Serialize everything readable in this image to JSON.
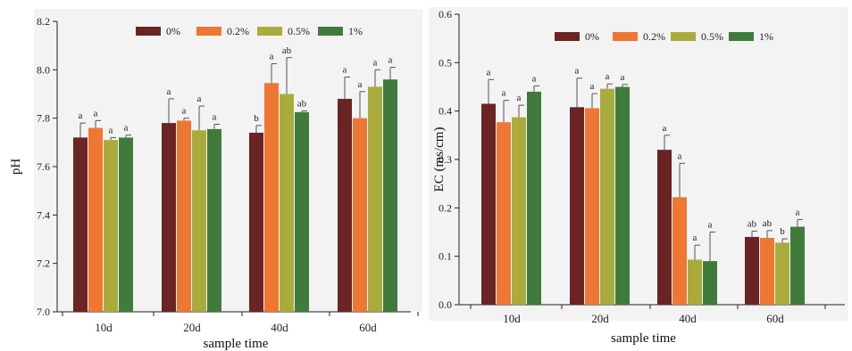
{
  "colors": [
    "#6b2424",
    "#ee7733",
    "#a9ac3d",
    "#3f7c3c"
  ],
  "chart_data": [
    {
      "type": "bar",
      "title": "",
      "xlabel": "sample time",
      "ylabel": "pH",
      "ylim": [
        7.0,
        8.2
      ],
      "yticks": [
        "7.0",
        "7.2",
        "7.4",
        "7.6",
        "7.8",
        "8.0",
        "8.2"
      ],
      "yticks_values": [
        7.0,
        7.2,
        7.4,
        7.6,
        7.8,
        8.0,
        8.2
      ],
      "categories": [
        "10d",
        "20d",
        "40d",
        "60d"
      ],
      "legend_position": "top",
      "series": [
        {
          "name": "0%",
          "values": [
            7.72,
            7.78,
            7.74,
            7.88
          ],
          "errors": [
            0.06,
            0.1,
            0.03,
            0.09
          ],
          "letters": [
            "a",
            "a",
            "b",
            "a"
          ]
        },
        {
          "name": "0.2%",
          "values": [
            7.76,
            7.79,
            7.945,
            7.8
          ],
          "errors": [
            0.03,
            0.01,
            0.08,
            0.11
          ],
          "letters": [
            "a",
            "a",
            "a",
            "a"
          ]
        },
        {
          "name": "0.5%",
          "values": [
            7.71,
            7.75,
            7.9,
            7.93
          ],
          "errors": [
            0.01,
            0.1,
            0.15,
            0.07
          ],
          "letters": [
            "a",
            "a",
            "ab",
            "a"
          ]
        },
        {
          "name": "1%",
          "values": [
            7.72,
            7.755,
            7.825,
            7.96
          ],
          "errors": [
            0.01,
            0.02,
            0.005,
            0.05
          ],
          "letters": [
            "a",
            "a",
            "ab",
            "a"
          ]
        }
      ]
    },
    {
      "type": "bar",
      "title": "",
      "xlabel": "sample time",
      "ylabel": "EC (ms/cm)",
      "ylim": [
        0.0,
        0.6
      ],
      "yticks": [
        "0.0",
        "0.1",
        "0.2",
        "0.3",
        "0.4",
        "0.5",
        "0.6"
      ],
      "yticks_values": [
        0.0,
        0.1,
        0.2,
        0.3,
        0.4,
        0.5,
        0.6
      ],
      "categories": [
        "10d",
        "20d",
        "40d",
        "60d"
      ],
      "legend_position": "top",
      "series": [
        {
          "name": "0%",
          "values": [
            0.415,
            0.408,
            0.32,
            0.14
          ],
          "errors": [
            0.05,
            0.06,
            0.03,
            0.012
          ],
          "letters": [
            "a",
            "a",
            "a",
            "ab"
          ]
        },
        {
          "name": "0.2%",
          "values": [
            0.377,
            0.406,
            0.222,
            0.138
          ],
          "errors": [
            0.045,
            0.03,
            0.07,
            0.015
          ],
          "letters": [
            "a",
            "a",
            "a",
            "ab"
          ]
        },
        {
          "name": "0.5%",
          "values": [
            0.387,
            0.446,
            0.093,
            0.128
          ],
          "errors": [
            0.025,
            0.01,
            0.03,
            0.008
          ],
          "letters": [
            "a",
            "a",
            "a",
            "b"
          ]
        },
        {
          "name": "1%",
          "values": [
            0.44,
            0.45,
            0.09,
            0.161
          ],
          "errors": [
            0.012,
            0.005,
            0.06,
            0.015
          ],
          "letters": [
            "a",
            "a",
            "a",
            "a"
          ]
        }
      ]
    }
  ]
}
